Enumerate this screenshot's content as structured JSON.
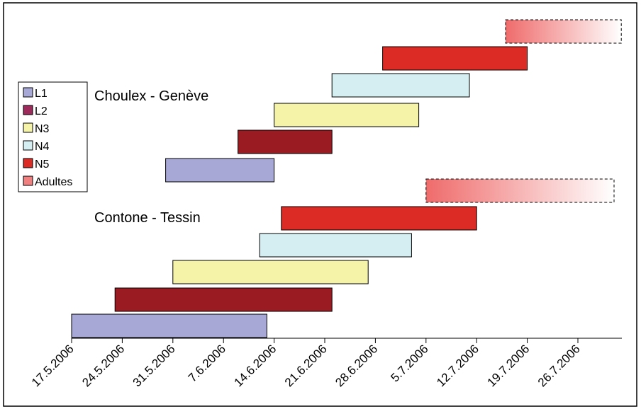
{
  "chart_data": {
    "type": "gantt",
    "x_axis": {
      "ticks": [
        "17.5.2006",
        "24.5.2006",
        "31.5.2006",
        "7.6.2006",
        "14.6.2006",
        "21.6.2006",
        "28.6.2006",
        "5.7.2006",
        "12.7.2006",
        "19.7.2006",
        "26.7.2006"
      ],
      "range": [
        "17.5.2006",
        "4.8.2006"
      ]
    },
    "legend": {
      "placement": "left",
      "entries": [
        {
          "label": "L1",
          "color": "#a8a8d6"
        },
        {
          "label": "L2",
          "color": "#9e2a5c"
        },
        {
          "label": "N3",
          "color": "#f5f3a8"
        },
        {
          "label": "N4",
          "color": "#d4eef2"
        },
        {
          "label": "N5",
          "color": "#dc2a25"
        },
        {
          "label": "Adultes",
          "color": "#f08080"
        }
      ]
    },
    "groups": [
      {
        "name": "Choulex - Genève",
        "bars": [
          {
            "stage": "L1",
            "start": "30.5.2006",
            "end": "14.6.2006",
            "color": "#a8a8d6"
          },
          {
            "stage": "L2",
            "start": "9.6.2006",
            "end": "22.6.2006",
            "color": "#9a1c22"
          },
          {
            "stage": "N3",
            "start": "14.6.2006",
            "end": "4.7.2006",
            "color": "#f5f3a8"
          },
          {
            "stage": "N4",
            "start": "22.6.2006",
            "end": "11.7.2006",
            "color": "#d4eef2"
          },
          {
            "stage": "N5",
            "start": "29.6.2006",
            "end": "19.7.2006",
            "color": "#dc2a25"
          },
          {
            "stage": "Adultes",
            "start": "16.7.2006",
            "end": "1.8.2006",
            "color": "#f08080",
            "gradient": true,
            "dashed": true
          }
        ]
      },
      {
        "name": "Contone - Tessin",
        "bars": [
          {
            "stage": "L1",
            "start": "17.5.2006",
            "end": "13.6.2006",
            "color": "#a8a8d6"
          },
          {
            "stage": "L2",
            "start": "23.5.2006",
            "end": "22.6.2006",
            "color": "#9a1c22"
          },
          {
            "stage": "N3",
            "start": "31.5.2006",
            "end": "27.6.2006",
            "color": "#f5f3a8"
          },
          {
            "stage": "N4",
            "start": "12.6.2006",
            "end": "3.7.2006",
            "color": "#d4eef2"
          },
          {
            "stage": "N5",
            "start": "15.6.2006",
            "end": "12.7.2006",
            "color": "#dc2a25"
          },
          {
            "stage": "Adultes",
            "start": "5.7.2006",
            "end": "31.7.2006",
            "color": "#f08080",
            "gradient": true,
            "dashed": true
          }
        ]
      }
    ]
  }
}
